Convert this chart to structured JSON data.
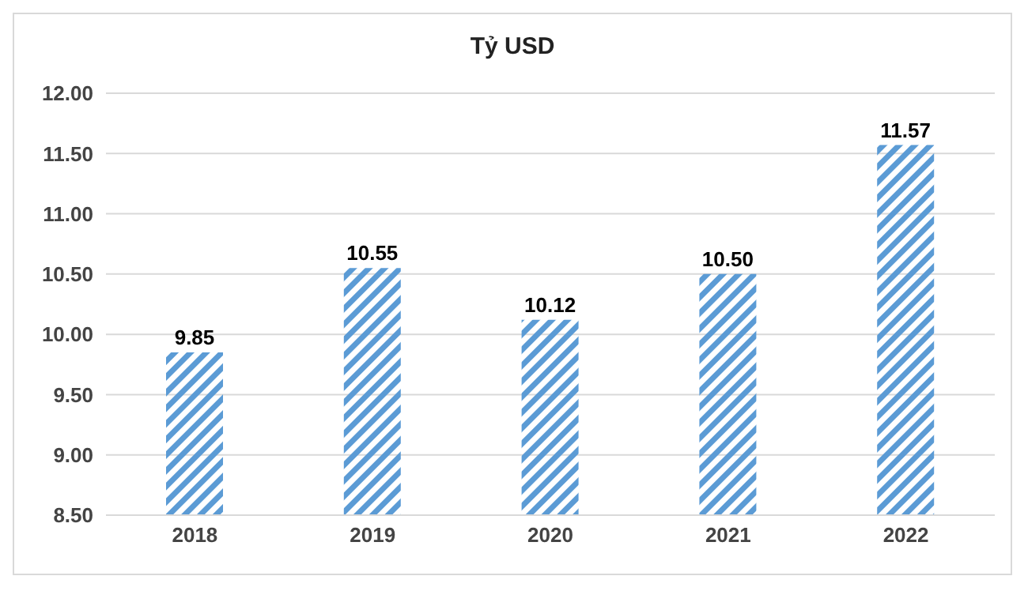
{
  "chart_data": {
    "type": "bar",
    "title": "Tỷ USD",
    "categories": [
      "2018",
      "2019",
      "2020",
      "2021",
      "2022"
    ],
    "values": [
      9.85,
      10.55,
      10.12,
      10.5,
      11.57
    ],
    "value_labels": [
      "9.85",
      "10.55",
      "10.12",
      "10.50",
      "11.57"
    ],
    "color": "#5b9bd5",
    "ylim": [
      8.5,
      12
    ],
    "yticks": [
      {
        "value": 8.5,
        "label": "8.50"
      },
      {
        "value": 9,
        "label": "9.00"
      },
      {
        "value": 9.5,
        "label": "9.50"
      },
      {
        "value": 10,
        "label": "10.00"
      },
      {
        "value": 10.5,
        "label": "10.50"
      },
      {
        "value": 11,
        "label": "11.00"
      },
      {
        "value": 11.5,
        "label": "11.50"
      },
      {
        "value": 12,
        "label": "12.00"
      }
    ],
    "grid": "y"
  }
}
